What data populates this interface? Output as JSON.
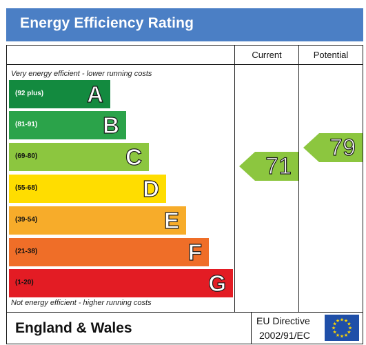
{
  "header": {
    "title": "Energy Efficiency Rating"
  },
  "columns": {
    "current": "Current",
    "potential": "Potential"
  },
  "notes": {
    "top": "Very energy efficient - lower running costs",
    "bottom": "Not energy efficient - higher running costs"
  },
  "bands": [
    {
      "letter": "A",
      "range": "(92 plus)",
      "color": "#138a3f"
    },
    {
      "letter": "B",
      "range": "(81-91)",
      "color": "#2ba34a"
    },
    {
      "letter": "C",
      "range": "(69-80)",
      "color": "#8cc63f"
    },
    {
      "letter": "D",
      "range": "(55-68)",
      "color": "#ffdd00"
    },
    {
      "letter": "E",
      "range": "(39-54)",
      "color": "#f7ac2a"
    },
    {
      "letter": "F",
      "range": "(21-38)",
      "color": "#ef6e28"
    },
    {
      "letter": "G",
      "range": "(1-20)",
      "color": "#e31c24"
    }
  ],
  "ratings": {
    "current": {
      "value": "71",
      "band": "C",
      "color": "#8cc63f"
    },
    "potential": {
      "value": "79",
      "band": "C",
      "color": "#8cc63f"
    }
  },
  "footer": {
    "region": "England & Wales",
    "directive_line1": "EU Directive",
    "directive_line2": "2002/91/EC",
    "flag_icon": "eu-flag-icon"
  }
}
